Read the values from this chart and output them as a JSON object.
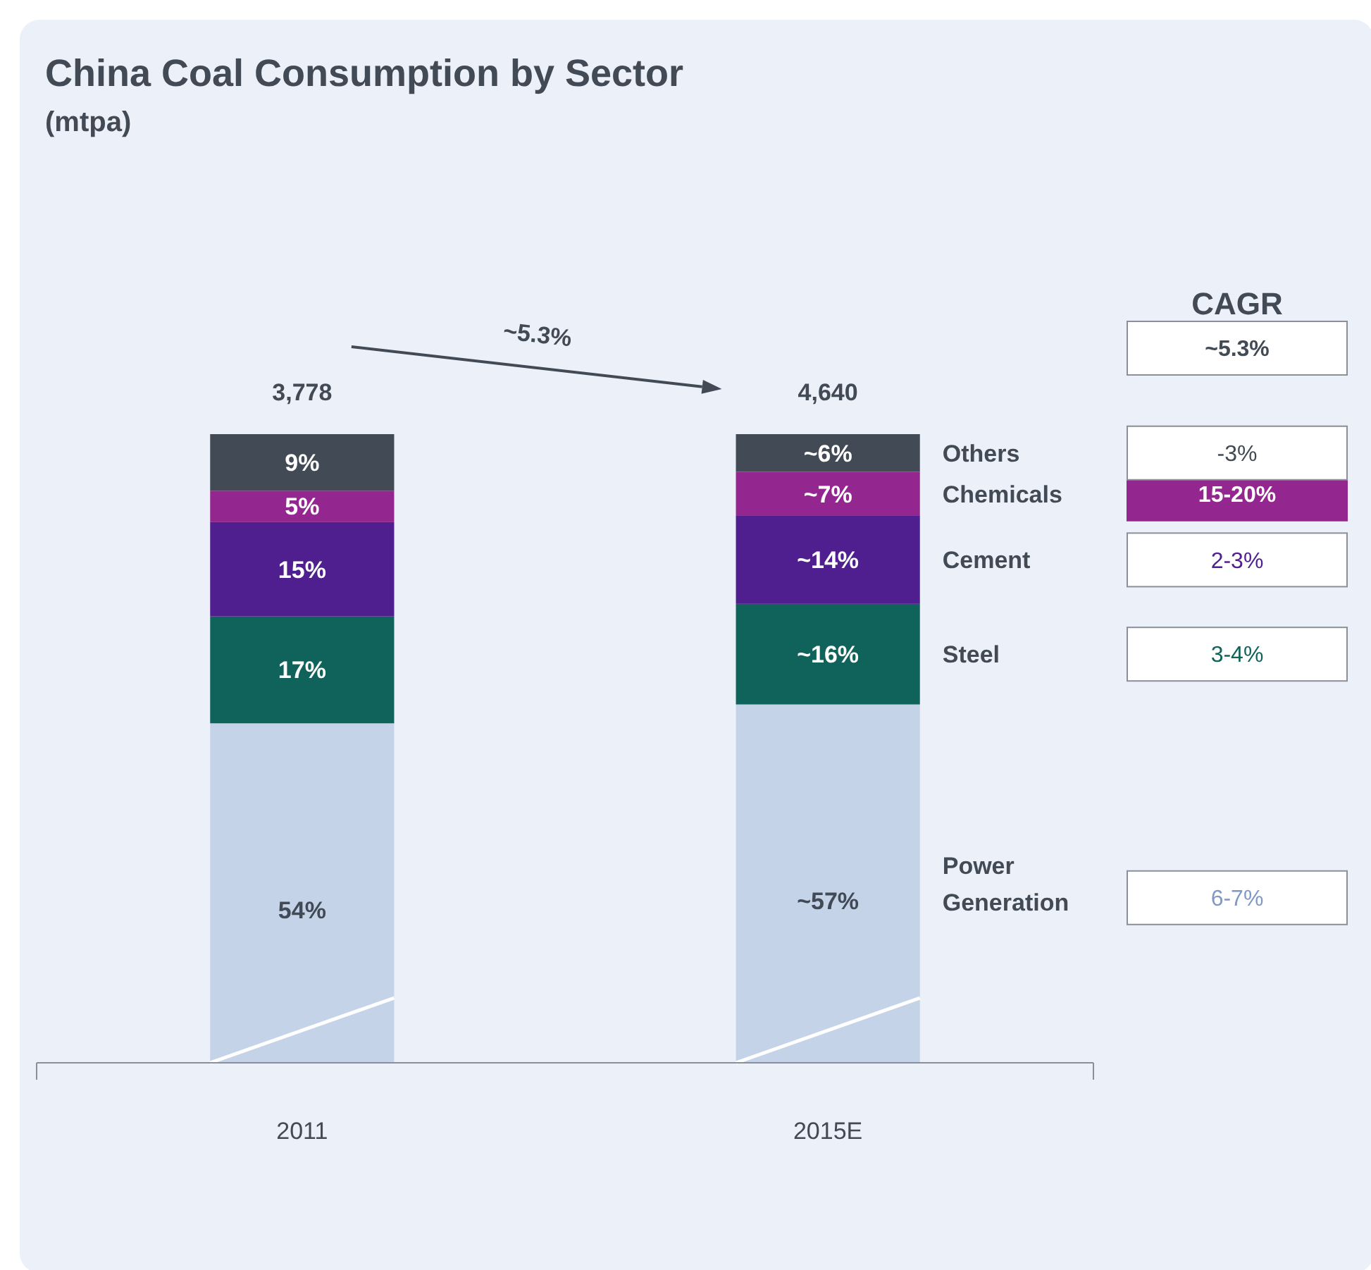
{
  "chart_data": {
    "type": "bar",
    "stacked": true,
    "title": "China Coal Consumption by Sector",
    "subtitle": "(mtpa)",
    "categories": [
      "2011",
      "2015E"
    ],
    "series": [
      {
        "name": "Power Generation",
        "color": "#c5d3e8",
        "values": [
          54,
          57
        ],
        "value_labels": [
          "54%",
          "~57%"
        ]
      },
      {
        "name": "Steel",
        "color": "#10635a",
        "values": [
          17,
          16
        ],
        "value_labels": [
          "17%",
          "~16%"
        ]
      },
      {
        "name": "Cement",
        "color": "#4f1e8f",
        "values": [
          15,
          14
        ],
        "value_labels": [
          "15%",
          "~14%"
        ]
      },
      {
        "name": "Chemicals",
        "color": "#94278f",
        "values": [
          5,
          7
        ],
        "value_labels": [
          "5%",
          "~7%"
        ]
      },
      {
        "name": "Others",
        "color": "#414a55",
        "values": [
          9,
          6
        ],
        "value_labels": [
          "9%",
          "~6%"
        ]
      }
    ],
    "annotations": [
      "3,778",
      "4,640",
      "~5.3%",
      "CAGR",
      "~5.3%",
      "6-7%",
      "3-4%",
      "2-3%",
      "15-20%",
      "-3%"
    ]
  }
}
